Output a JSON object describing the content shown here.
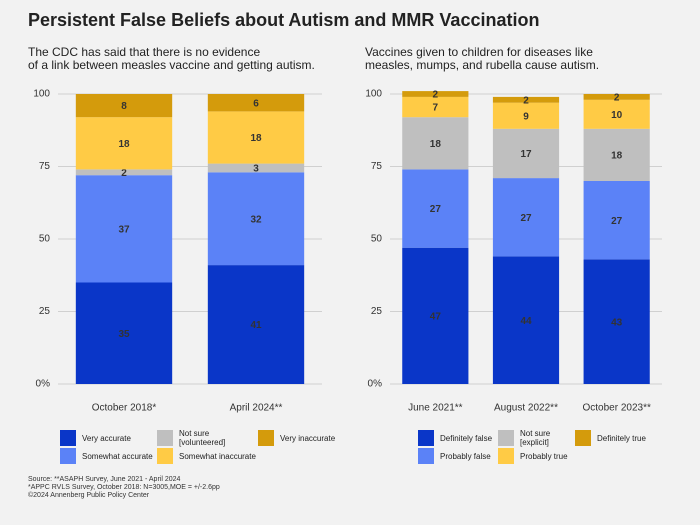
{
  "title": "Persistent False Beliefs about Autism and MMR Vaccination",
  "source": "Source: **ASAPH Survey, June 2021 - April 2024\n*APPC RVLS Survey, October 2018: N=3005,MOE = +/-2.6pp\n©2024 Annenberg Public Policy Center",
  "chart_data": [
    {
      "type": "bar",
      "stacked": true,
      "subtitle": "The CDC has said that there is no evidence\nof a link between measles vaccine and getting autism.",
      "categories": [
        "October 2018*",
        "April 2024**"
      ],
      "series": [
        {
          "name": "Very accurate",
          "color": "#0a36c8",
          "values": [
            35,
            41
          ]
        },
        {
          "name": "Somewhat accurate",
          "color": "#5b82f7",
          "values": [
            37,
            32
          ]
        },
        {
          "name": "Not sure\n[volunteered]",
          "color": "#bfbfbf",
          "values": [
            2,
            3
          ]
        },
        {
          "name": "Somewhat inaccurate",
          "color": "#ffcb45",
          "values": [
            18,
            18
          ]
        },
        {
          "name": "Very inaccurate",
          "color": "#d49b0c",
          "values": [
            8,
            6
          ]
        }
      ],
      "ylim": [
        0,
        100
      ],
      "yticks": [
        {
          "value": 0,
          "label": "0%"
        },
        25,
        50,
        75,
        100
      ],
      "grid": true
    },
    {
      "type": "bar",
      "stacked": true,
      "subtitle": "Vaccines given to children for diseases like\nmeasles, mumps, and rubella cause autism.",
      "categories": [
        "June 2021**",
        "August 2022**",
        "October 2023**"
      ],
      "series": [
        {
          "name": "Definitely false",
          "color": "#0a36c8",
          "values": [
            47,
            44,
            43
          ]
        },
        {
          "name": "Probably false",
          "color": "#5b82f7",
          "values": [
            27,
            27,
            27
          ]
        },
        {
          "name": "Not sure\n[explicit]",
          "color": "#bfbfbf",
          "values": [
            18,
            17,
            18
          ]
        },
        {
          "name": "Probably true",
          "color": "#ffcb45",
          "values": [
            7,
            9,
            10
          ]
        },
        {
          "name": "Definitely true",
          "color": "#d49b0c",
          "values": [
            2,
            2,
            2
          ]
        }
      ],
      "ylim": [
        0,
        100
      ],
      "yticks": [
        {
          "value": 0,
          "label": "0%"
        },
        25,
        50,
        75,
        100
      ],
      "grid": true
    }
  ]
}
